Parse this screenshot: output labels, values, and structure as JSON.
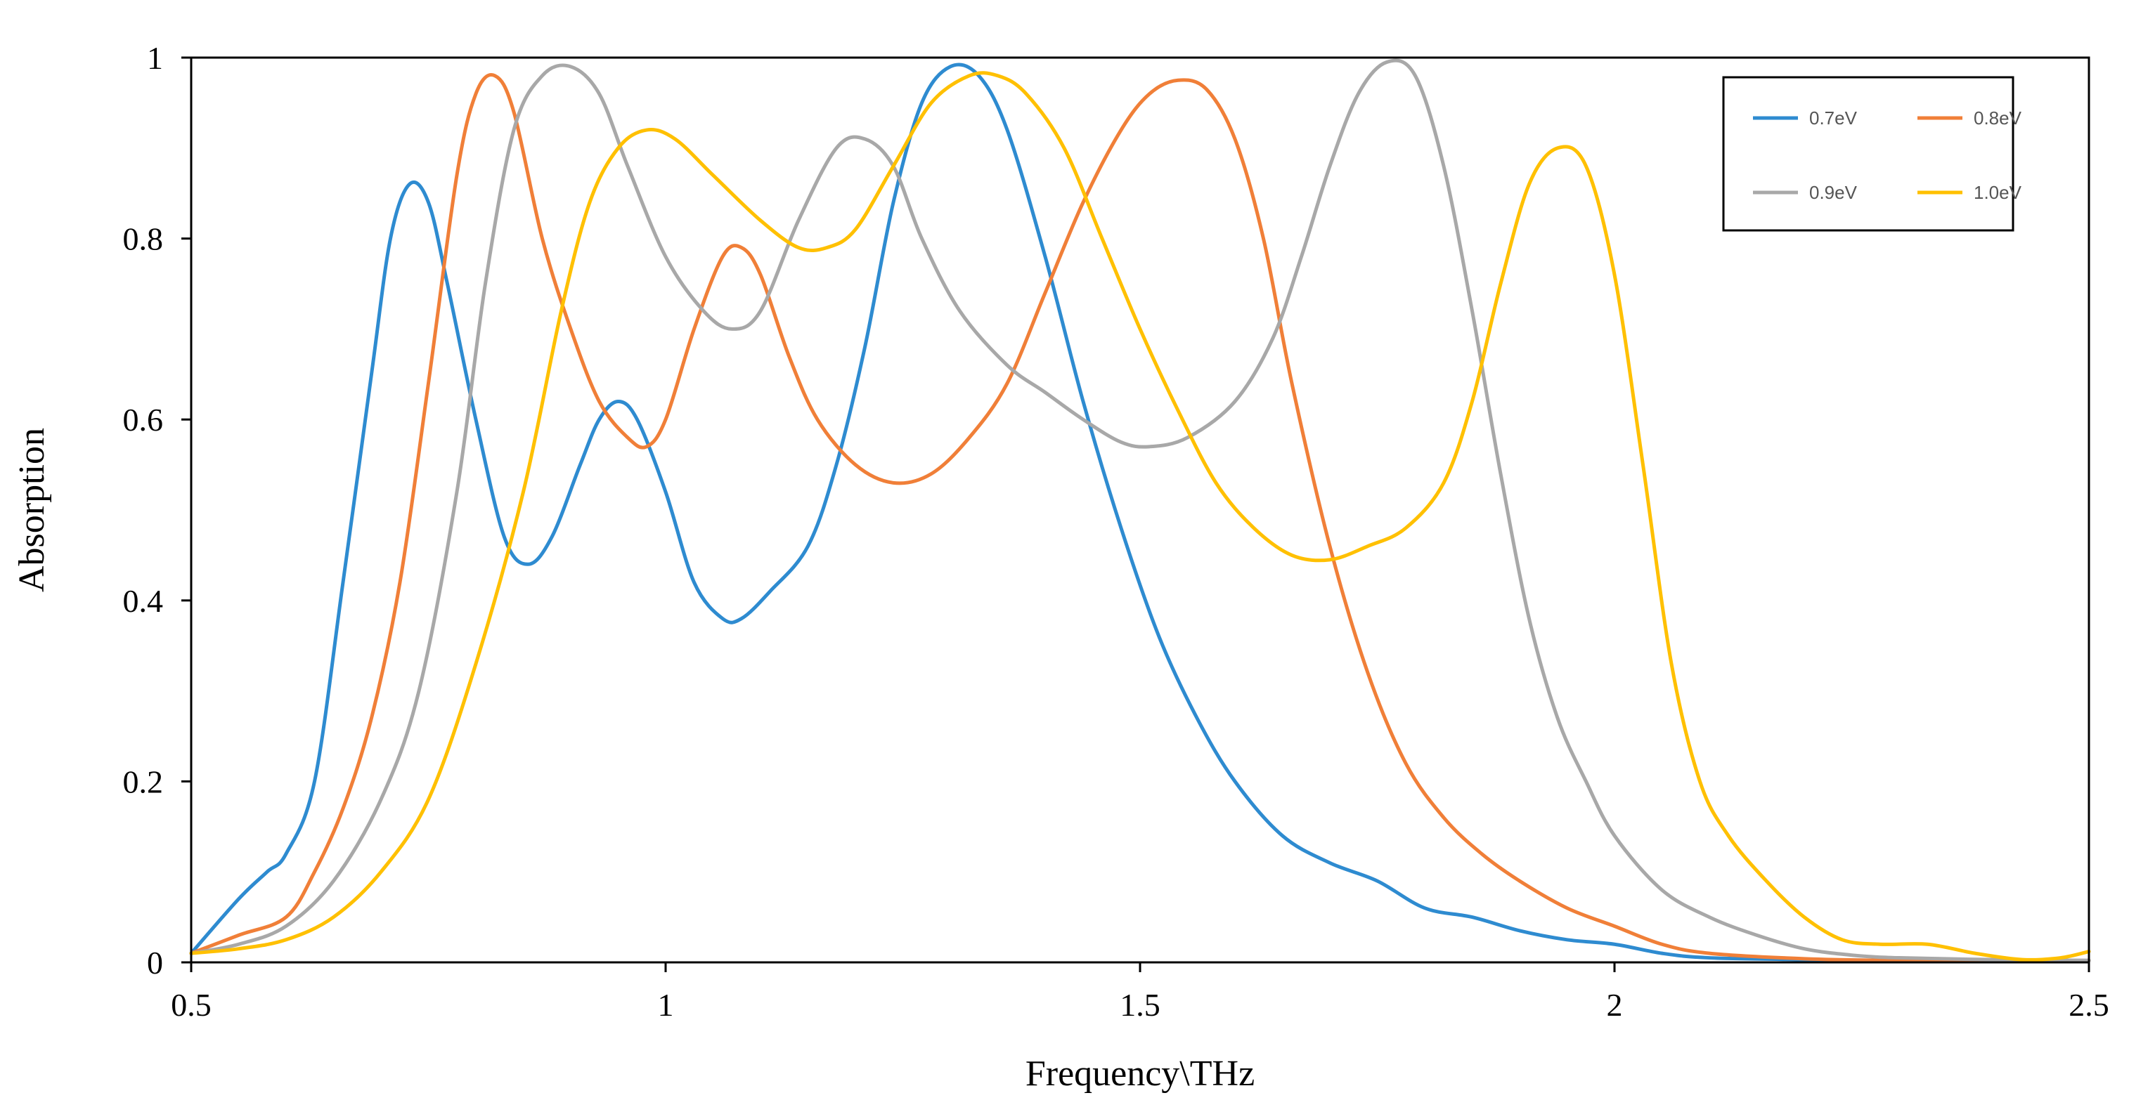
{
  "chart_data": {
    "type": "line",
    "title": "",
    "xlabel": "Frequency\\THz",
    "ylabel": "Absorption",
    "xlim": [
      0.5,
      2.5
    ],
    "ylim": [
      0,
      1
    ],
    "x_ticks": [
      0.5,
      1,
      1.5,
      2,
      2.5
    ],
    "x_tick_labels": [
      "0.5",
      "1",
      "1.5",
      "2",
      "2.5"
    ],
    "y_ticks": [
      0,
      0.2,
      0.4,
      0.6,
      0.8,
      1
    ],
    "y_tick_labels": [
      "0",
      "0.2",
      "0.4",
      "0.6",
      "0.8",
      "1"
    ],
    "grid": false,
    "legend_position": "top-right",
    "series": [
      {
        "name": "0.7eV",
        "color": "#2e8bd0",
        "points": [
          [
            0.5,
            0.01
          ],
          [
            0.55,
            0.07
          ],
          [
            0.58,
            0.1
          ],
          [
            0.6,
            0.12
          ],
          [
            0.63,
            0.2
          ],
          [
            0.66,
            0.42
          ],
          [
            0.69,
            0.65
          ],
          [
            0.71,
            0.8
          ],
          [
            0.73,
            0.86
          ],
          [
            0.75,
            0.84
          ],
          [
            0.77,
            0.75
          ],
          [
            0.8,
            0.6
          ],
          [
            0.83,
            0.47
          ],
          [
            0.855,
            0.44
          ],
          [
            0.88,
            0.47
          ],
          [
            0.91,
            0.55
          ],
          [
            0.93,
            0.6
          ],
          [
            0.95,
            0.62
          ],
          [
            0.97,
            0.6
          ],
          [
            1.0,
            0.52
          ],
          [
            1.03,
            0.42
          ],
          [
            1.06,
            0.38
          ],
          [
            1.08,
            0.38
          ],
          [
            1.11,
            0.41
          ],
          [
            1.15,
            0.46
          ],
          [
            1.18,
            0.55
          ],
          [
            1.21,
            0.68
          ],
          [
            1.24,
            0.84
          ],
          [
            1.27,
            0.95
          ],
          [
            1.3,
            0.99
          ],
          [
            1.33,
            0.98
          ],
          [
            1.36,
            0.92
          ],
          [
            1.4,
            0.78
          ],
          [
            1.44,
            0.62
          ],
          [
            1.48,
            0.48
          ],
          [
            1.52,
            0.36
          ],
          [
            1.56,
            0.27
          ],
          [
            1.6,
            0.2
          ],
          [
            1.65,
            0.14
          ],
          [
            1.7,
            0.11
          ],
          [
            1.75,
            0.09
          ],
          [
            1.8,
            0.06
          ],
          [
            1.85,
            0.05
          ],
          [
            1.9,
            0.035
          ],
          [
            1.95,
            0.025
          ],
          [
            2.0,
            0.02
          ],
          [
            2.05,
            0.01
          ],
          [
            2.1,
            0.005
          ],
          [
            2.2,
            0.003
          ],
          [
            2.3,
            0.002
          ],
          [
            2.4,
            0.002
          ],
          [
            2.5,
            0.002
          ]
        ]
      },
      {
        "name": "0.8eV",
        "color": "#f07f38",
        "points": [
          [
            0.5,
            0.01
          ],
          [
            0.55,
            0.03
          ],
          [
            0.6,
            0.05
          ],
          [
            0.63,
            0.1
          ],
          [
            0.66,
            0.17
          ],
          [
            0.69,
            0.27
          ],
          [
            0.72,
            0.42
          ],
          [
            0.75,
            0.64
          ],
          [
            0.78,
            0.87
          ],
          [
            0.8,
            0.96
          ],
          [
            0.82,
            0.98
          ],
          [
            0.84,
            0.94
          ],
          [
            0.87,
            0.8
          ],
          [
            0.9,
            0.7
          ],
          [
            0.93,
            0.62
          ],
          [
            0.96,
            0.58
          ],
          [
            0.98,
            0.57
          ],
          [
            1.0,
            0.6
          ],
          [
            1.03,
            0.7
          ],
          [
            1.06,
            0.78
          ],
          [
            1.08,
            0.79
          ],
          [
            1.1,
            0.76
          ],
          [
            1.13,
            0.67
          ],
          [
            1.16,
            0.6
          ],
          [
            1.2,
            0.55
          ],
          [
            1.24,
            0.53
          ],
          [
            1.28,
            0.54
          ],
          [
            1.32,
            0.58
          ],
          [
            1.36,
            0.64
          ],
          [
            1.4,
            0.74
          ],
          [
            1.44,
            0.84
          ],
          [
            1.48,
            0.92
          ],
          [
            1.51,
            0.96
          ],
          [
            1.54,
            0.975
          ],
          [
            1.57,
            0.965
          ],
          [
            1.6,
            0.91
          ],
          [
            1.63,
            0.8
          ],
          [
            1.66,
            0.64
          ],
          [
            1.7,
            0.46
          ],
          [
            1.74,
            0.32
          ],
          [
            1.78,
            0.22
          ],
          [
            1.82,
            0.16
          ],
          [
            1.86,
            0.12
          ],
          [
            1.9,
            0.09
          ],
          [
            1.95,
            0.06
          ],
          [
            2.0,
            0.04
          ],
          [
            2.05,
            0.02
          ],
          [
            2.1,
            0.01
          ],
          [
            2.2,
            0.004
          ],
          [
            2.3,
            0.002
          ],
          [
            2.4,
            0.002
          ],
          [
            2.5,
            0.002
          ]
        ]
      },
      {
        "name": "0.9eV",
        "color": "#a8a8a8",
        "points": [
          [
            0.5,
            0.01
          ],
          [
            0.55,
            0.02
          ],
          [
            0.6,
            0.04
          ],
          [
            0.65,
            0.09
          ],
          [
            0.7,
            0.18
          ],
          [
            0.74,
            0.3
          ],
          [
            0.78,
            0.52
          ],
          [
            0.81,
            0.75
          ],
          [
            0.84,
            0.92
          ],
          [
            0.87,
            0.98
          ],
          [
            0.9,
            0.99
          ],
          [
            0.93,
            0.96
          ],
          [
            0.96,
            0.88
          ],
          [
            1.0,
            0.78
          ],
          [
            1.04,
            0.72
          ],
          [
            1.07,
            0.7
          ],
          [
            1.1,
            0.72
          ],
          [
            1.14,
            0.82
          ],
          [
            1.18,
            0.9
          ],
          [
            1.21,
            0.91
          ],
          [
            1.24,
            0.88
          ],
          [
            1.27,
            0.8
          ],
          [
            1.31,
            0.72
          ],
          [
            1.36,
            0.66
          ],
          [
            1.4,
            0.63
          ],
          [
            1.44,
            0.6
          ],
          [
            1.48,
            0.575
          ],
          [
            1.51,
            0.57
          ],
          [
            1.55,
            0.58
          ],
          [
            1.6,
            0.62
          ],
          [
            1.64,
            0.69
          ],
          [
            1.67,
            0.78
          ],
          [
            1.7,
            0.88
          ],
          [
            1.73,
            0.96
          ],
          [
            1.76,
            0.995
          ],
          [
            1.79,
            0.98
          ],
          [
            1.82,
            0.88
          ],
          [
            1.85,
            0.72
          ],
          [
            1.88,
            0.54
          ],
          [
            1.91,
            0.38
          ],
          [
            1.94,
            0.27
          ],
          [
            1.97,
            0.2
          ],
          [
            2.0,
            0.14
          ],
          [
            2.05,
            0.08
          ],
          [
            2.1,
            0.05
          ],
          [
            2.15,
            0.03
          ],
          [
            2.2,
            0.015
          ],
          [
            2.25,
            0.008
          ],
          [
            2.3,
            0.005
          ],
          [
            2.4,
            0.003
          ],
          [
            2.5,
            0.002
          ]
        ]
      },
      {
        "name": "1.0eV",
        "color": "#ffc000",
        "points": [
          [
            0.5,
            0.01
          ],
          [
            0.55,
            0.015
          ],
          [
            0.6,
            0.025
          ],
          [
            0.65,
            0.05
          ],
          [
            0.7,
            0.1
          ],
          [
            0.75,
            0.18
          ],
          [
            0.8,
            0.33
          ],
          [
            0.85,
            0.52
          ],
          [
            0.89,
            0.72
          ],
          [
            0.92,
            0.84
          ],
          [
            0.95,
            0.9
          ],
          [
            0.98,
            0.92
          ],
          [
            1.01,
            0.91
          ],
          [
            1.05,
            0.87
          ],
          [
            1.1,
            0.82
          ],
          [
            1.14,
            0.79
          ],
          [
            1.17,
            0.79
          ],
          [
            1.2,
            0.81
          ],
          [
            1.24,
            0.88
          ],
          [
            1.28,
            0.95
          ],
          [
            1.32,
            0.98
          ],
          [
            1.35,
            0.98
          ],
          [
            1.38,
            0.96
          ],
          [
            1.42,
            0.9
          ],
          [
            1.46,
            0.8
          ],
          [
            1.5,
            0.7
          ],
          [
            1.54,
            0.61
          ],
          [
            1.58,
            0.53
          ],
          [
            1.62,
            0.48
          ],
          [
            1.66,
            0.45
          ],
          [
            1.7,
            0.445
          ],
          [
            1.74,
            0.46
          ],
          [
            1.78,
            0.48
          ],
          [
            1.82,
            0.53
          ],
          [
            1.85,
            0.62
          ],
          [
            1.88,
            0.75
          ],
          [
            1.91,
            0.86
          ],
          [
            1.94,
            0.9
          ],
          [
            1.97,
            0.88
          ],
          [
            2.0,
            0.76
          ],
          [
            2.03,
            0.55
          ],
          [
            2.06,
            0.33
          ],
          [
            2.09,
            0.2
          ],
          [
            2.12,
            0.14
          ],
          [
            2.16,
            0.09
          ],
          [
            2.2,
            0.05
          ],
          [
            2.24,
            0.025
          ],
          [
            2.28,
            0.02
          ],
          [
            2.33,
            0.02
          ],
          [
            2.38,
            0.01
          ],
          [
            2.43,
            0.003
          ],
          [
            2.47,
            0.005
          ],
          [
            2.5,
            0.012
          ]
        ]
      }
    ]
  }
}
